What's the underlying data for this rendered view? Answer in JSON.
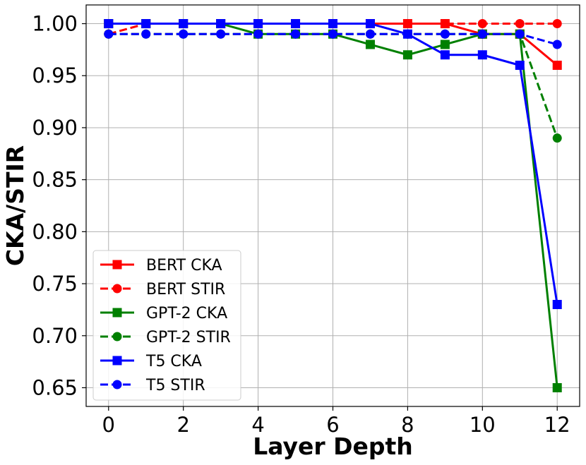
{
  "chart_data": {
    "type": "line",
    "xlabel": "Layer Depth",
    "ylabel": "CKA/STIR",
    "xlim": [
      -0.6,
      12.6
    ],
    "ylim": [
      0.632,
      1.018
    ],
    "xticks": [
      0,
      2,
      4,
      6,
      8,
      10,
      12
    ],
    "xtick_labels": [
      "0",
      "2",
      "4",
      "6",
      "8",
      "10",
      "12"
    ],
    "yticks": [
      0.65,
      0.7,
      0.75,
      0.8,
      0.85,
      0.9,
      0.95,
      1.0
    ],
    "ytick_labels": [
      "0.65",
      "0.70",
      "0.75",
      "0.80",
      "0.85",
      "0.90",
      "0.95",
      "1.00"
    ],
    "grid": true,
    "legend_position": "lower-left",
    "x": [
      0,
      1,
      2,
      3,
      4,
      5,
      6,
      7,
      8,
      9,
      10,
      11,
      12
    ],
    "series": [
      {
        "name": "BERT CKA",
        "color": "#ff0000",
        "style": "solid",
        "marker": "square",
        "values": [
          1.0,
          1.0,
          1.0,
          1.0,
          1.0,
          1.0,
          1.0,
          1.0,
          1.0,
          1.0,
          0.99,
          0.99,
          0.96
        ]
      },
      {
        "name": "BERT STIR",
        "color": "#ff0000",
        "style": "dashed",
        "marker": "circle",
        "values": [
          0.99,
          1.0,
          1.0,
          1.0,
          1.0,
          1.0,
          1.0,
          1.0,
          1.0,
          1.0,
          1.0,
          1.0,
          1.0
        ]
      },
      {
        "name": "GPT-2 CKA",
        "color": "#008000",
        "style": "solid",
        "marker": "square",
        "values": [
          1.0,
          1.0,
          1.0,
          1.0,
          0.99,
          0.99,
          0.99,
          0.98,
          0.97,
          0.98,
          0.99,
          0.99,
          0.65
        ]
      },
      {
        "name": "GPT-2 STIR",
        "color": "#008000",
        "style": "dashed",
        "marker": "circle",
        "values": [
          0.99,
          0.99,
          0.99,
          0.99,
          0.99,
          0.99,
          0.99,
          0.99,
          0.99,
          0.99,
          0.99,
          0.99,
          0.89
        ]
      },
      {
        "name": "T5 CKA",
        "color": "#0000ff",
        "style": "solid",
        "marker": "square",
        "values": [
          1.0,
          1.0,
          1.0,
          1.0,
          1.0,
          1.0,
          1.0,
          1.0,
          0.99,
          0.97,
          0.97,
          0.96,
          0.73
        ]
      },
      {
        "name": "T5 STIR",
        "color": "#0000ff",
        "style": "dashed",
        "marker": "circle",
        "values": [
          0.99,
          0.99,
          0.99,
          0.99,
          0.99,
          0.99,
          0.99,
          0.99,
          0.99,
          0.99,
          0.99,
          0.99,
          0.98
        ]
      }
    ]
  }
}
